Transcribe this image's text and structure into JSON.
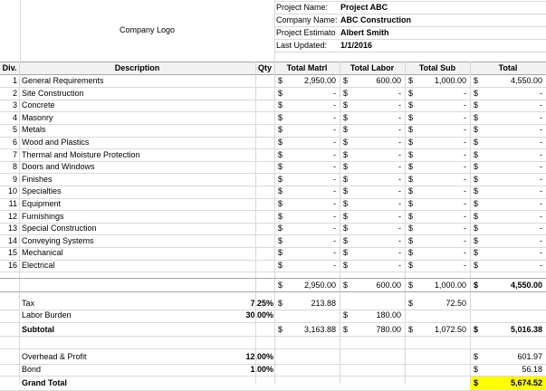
{
  "header": {
    "logo_text": "Company Logo",
    "fields": [
      {
        "label": "Project Name:",
        "value": "Project ABC"
      },
      {
        "label": "Company Name:",
        "value": "ABC Construction"
      },
      {
        "label": "Project Estimato",
        "value": "Albert Smith"
      },
      {
        "label": "Last Updated:",
        "value": "1/1/2016"
      }
    ]
  },
  "columns": {
    "div": "Div.",
    "description": "Description",
    "qty": "Qty",
    "matrl": "Total Matrl",
    "labor": "Total Labor",
    "sub": "Total Sub",
    "total": "Total"
  },
  "currency_symbol": "$",
  "dash": "-",
  "items": [
    {
      "div": "1",
      "desc": "General Requirements",
      "matrl": "2,950.00",
      "labor": "600.00",
      "sub": "1,000.00",
      "total": "4,550.00"
    },
    {
      "div": "2",
      "desc": "Site Construction",
      "matrl": "-",
      "labor": "-",
      "sub": "-",
      "total": "-"
    },
    {
      "div": "3",
      "desc": "Concrete",
      "matrl": "-",
      "labor": "-",
      "sub": "-",
      "total": "-"
    },
    {
      "div": "4",
      "desc": "Masonry",
      "matrl": "-",
      "labor": "-",
      "sub": "-",
      "total": "-"
    },
    {
      "div": "5",
      "desc": "Metals",
      "matrl": "-",
      "labor": "-",
      "sub": "-",
      "total": "-"
    },
    {
      "div": "6",
      "desc": "Wood and Plastics",
      "matrl": "-",
      "labor": "-",
      "sub": "-",
      "total": "-"
    },
    {
      "div": "7",
      "desc": "Thermal and Moisture Protection",
      "matrl": "-",
      "labor": "-",
      "sub": "-",
      "total": "-"
    },
    {
      "div": "8",
      "desc": "Doors and Windows",
      "matrl": "-",
      "labor": "-",
      "sub": "-",
      "total": "-"
    },
    {
      "div": "9",
      "desc": "Finishes",
      "matrl": "-",
      "labor": "-",
      "sub": "-",
      "total": "-"
    },
    {
      "div": "10",
      "desc": "Specialties",
      "matrl": "-",
      "labor": "-",
      "sub": "-",
      "total": "-"
    },
    {
      "div": "11",
      "desc": "Equipment",
      "matrl": "-",
      "labor": "-",
      "sub": "-",
      "total": "-"
    },
    {
      "div": "12",
      "desc": "Furnishings",
      "matrl": "-",
      "labor": "-",
      "sub": "-",
      "total": "-"
    },
    {
      "div": "13",
      "desc": "Special Construction",
      "matrl": "-",
      "labor": "-",
      "sub": "-",
      "total": "-"
    },
    {
      "div": "14",
      "desc": "Conveying Systems",
      "matrl": "-",
      "labor": "-",
      "sub": "-",
      "total": "-"
    },
    {
      "div": "15",
      "desc": "Mechanical",
      "matrl": "-",
      "labor": "-",
      "sub": "-",
      "total": "-"
    },
    {
      "div": "16",
      "desc": "Electrical",
      "matrl": "-",
      "labor": "-",
      "sub": "-",
      "total": "-"
    }
  ],
  "totals": {
    "matrl": "2,950.00",
    "labor": "600.00",
    "sub": "1,000.00",
    "total": "4,550.00"
  },
  "tax": {
    "label": "Tax",
    "rate": "7.25%",
    "matrl": "213.88",
    "sub": "72.50"
  },
  "labor_burden": {
    "label": "Labor Burden",
    "rate": "30.00%",
    "labor": "180.00"
  },
  "subtotal": {
    "label": "Subtotal",
    "matrl": "3,163.88",
    "labor": "780.00",
    "sub": "1,072.50",
    "total": "5,016.38"
  },
  "overhead": {
    "label": "Overhead & Profit",
    "rate": "12.00%",
    "total": "601.97"
  },
  "bond": {
    "label": "Bond",
    "rate": "1.00%",
    "total": "56.18"
  },
  "grand_total": {
    "label": "Grand Total",
    "total": "5,674.52"
  },
  "colors": {
    "grand_total_highlight": "#ffff00",
    "gridline": "#d9d9d9"
  }
}
